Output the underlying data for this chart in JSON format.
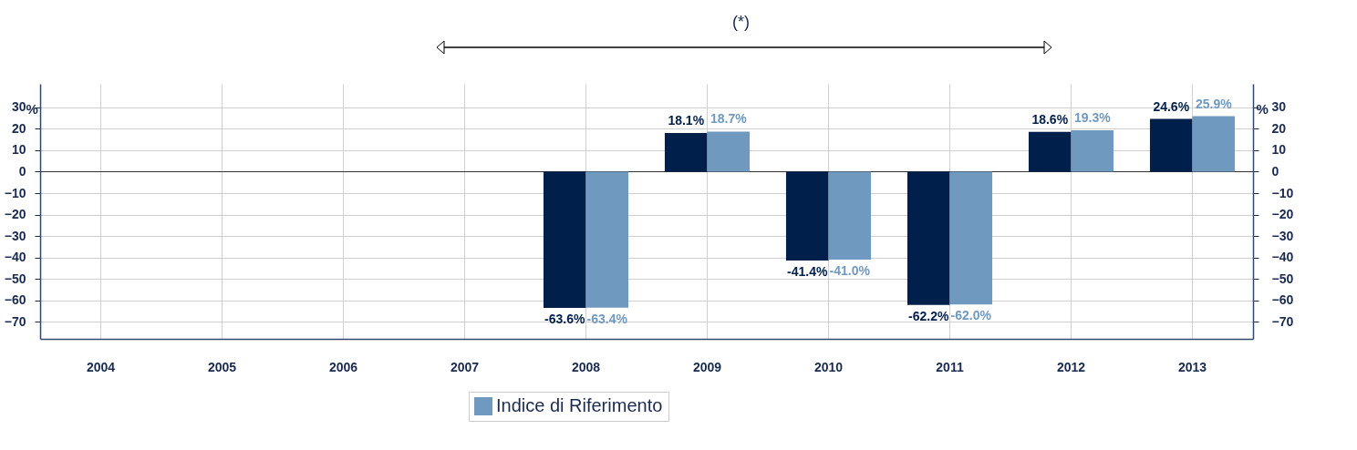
{
  "chart_data": {
    "type": "bar",
    "categories": [
      "2004",
      "2005",
      "2006",
      "2007",
      "2008",
      "2009",
      "2010",
      "2011",
      "2012",
      "2013"
    ],
    "series": [
      {
        "color": "#001f4a",
        "values": [
          null,
          null,
          null,
          null,
          -63.6,
          18.1,
          -41.4,
          -62.2,
          18.6,
          24.6
        ],
        "value_labels": [
          null,
          null,
          null,
          null,
          "-63.6%",
          "18.1%",
          "-41.4%",
          "-62.2%",
          "18.6%",
          "24.6%"
        ]
      },
      {
        "name": "Indice di Riferimento",
        "color": "#7099bf",
        "values": [
          null,
          null,
          null,
          null,
          -63.4,
          18.7,
          -41.0,
          -62.0,
          19.3,
          25.9
        ],
        "value_labels": [
          null,
          null,
          null,
          null,
          "-63.4%",
          "18.7%",
          "-41.0%",
          "-62.0%",
          "19.3%",
          "25.9%"
        ]
      }
    ],
    "ylabel": "%",
    "y2label": "%",
    "ylim": [
      -78,
      41
    ],
    "yticks": [
      -70,
      -60,
      -50,
      -40,
      -30,
      -20,
      -10,
      0,
      10,
      20,
      30
    ],
    "y2lim": [
      -78,
      41
    ],
    "y2ticks": [
      -70,
      -60,
      -50,
      -40,
      -30,
      -20,
      -10,
      0,
      10,
      20,
      30
    ],
    "grid": true,
    "legend": "bottom",
    "annotations": [
      "(*)"
    ]
  }
}
